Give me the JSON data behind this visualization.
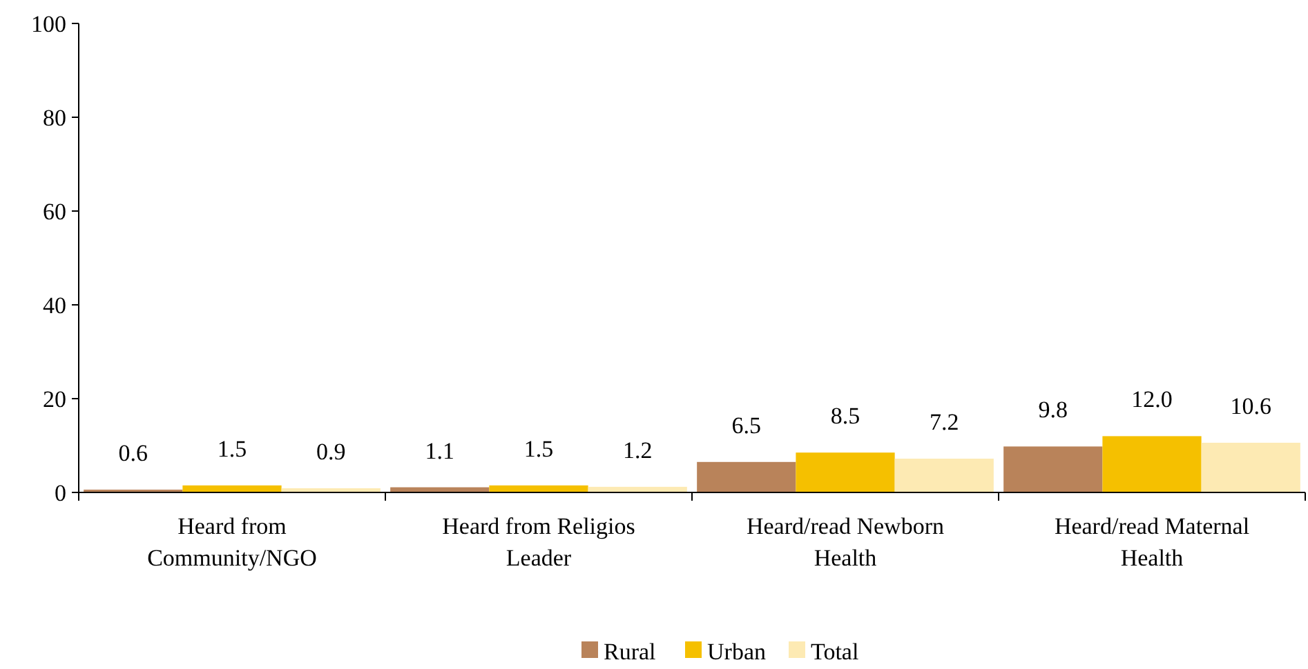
{
  "chart_data": {
    "type": "bar",
    "categories": [
      "Heard from Community/NGO",
      "Heard from Religios Leader",
      "Heard/read Newborn Health",
      "Heard/read Maternal Health"
    ],
    "series": [
      {
        "name": "Rural",
        "color": "#b9835a",
        "values": [
          0.6,
          1.1,
          6.5,
          9.8
        ],
        "value_labels": [
          "0.6",
          "1.1",
          "6.5",
          "9.8"
        ]
      },
      {
        "name": "Urban",
        "color": "#f5c000",
        "values": [
          1.5,
          1.5,
          8.5,
          12.0
        ],
        "value_labels": [
          "1.5",
          "1.5",
          "8.5",
          "12.0"
        ]
      },
      {
        "name": "Total",
        "color": "#fdeab3",
        "values": [
          0.9,
          1.2,
          7.2,
          10.6
        ],
        "value_labels": [
          "0.9",
          "1.2",
          "7.2",
          "10.6"
        ]
      }
    ],
    "ylim": [
      0,
      100
    ],
    "yticks": [
      0,
      20,
      40,
      60,
      80,
      100
    ],
    "grid": false,
    "legend": "bottom"
  }
}
